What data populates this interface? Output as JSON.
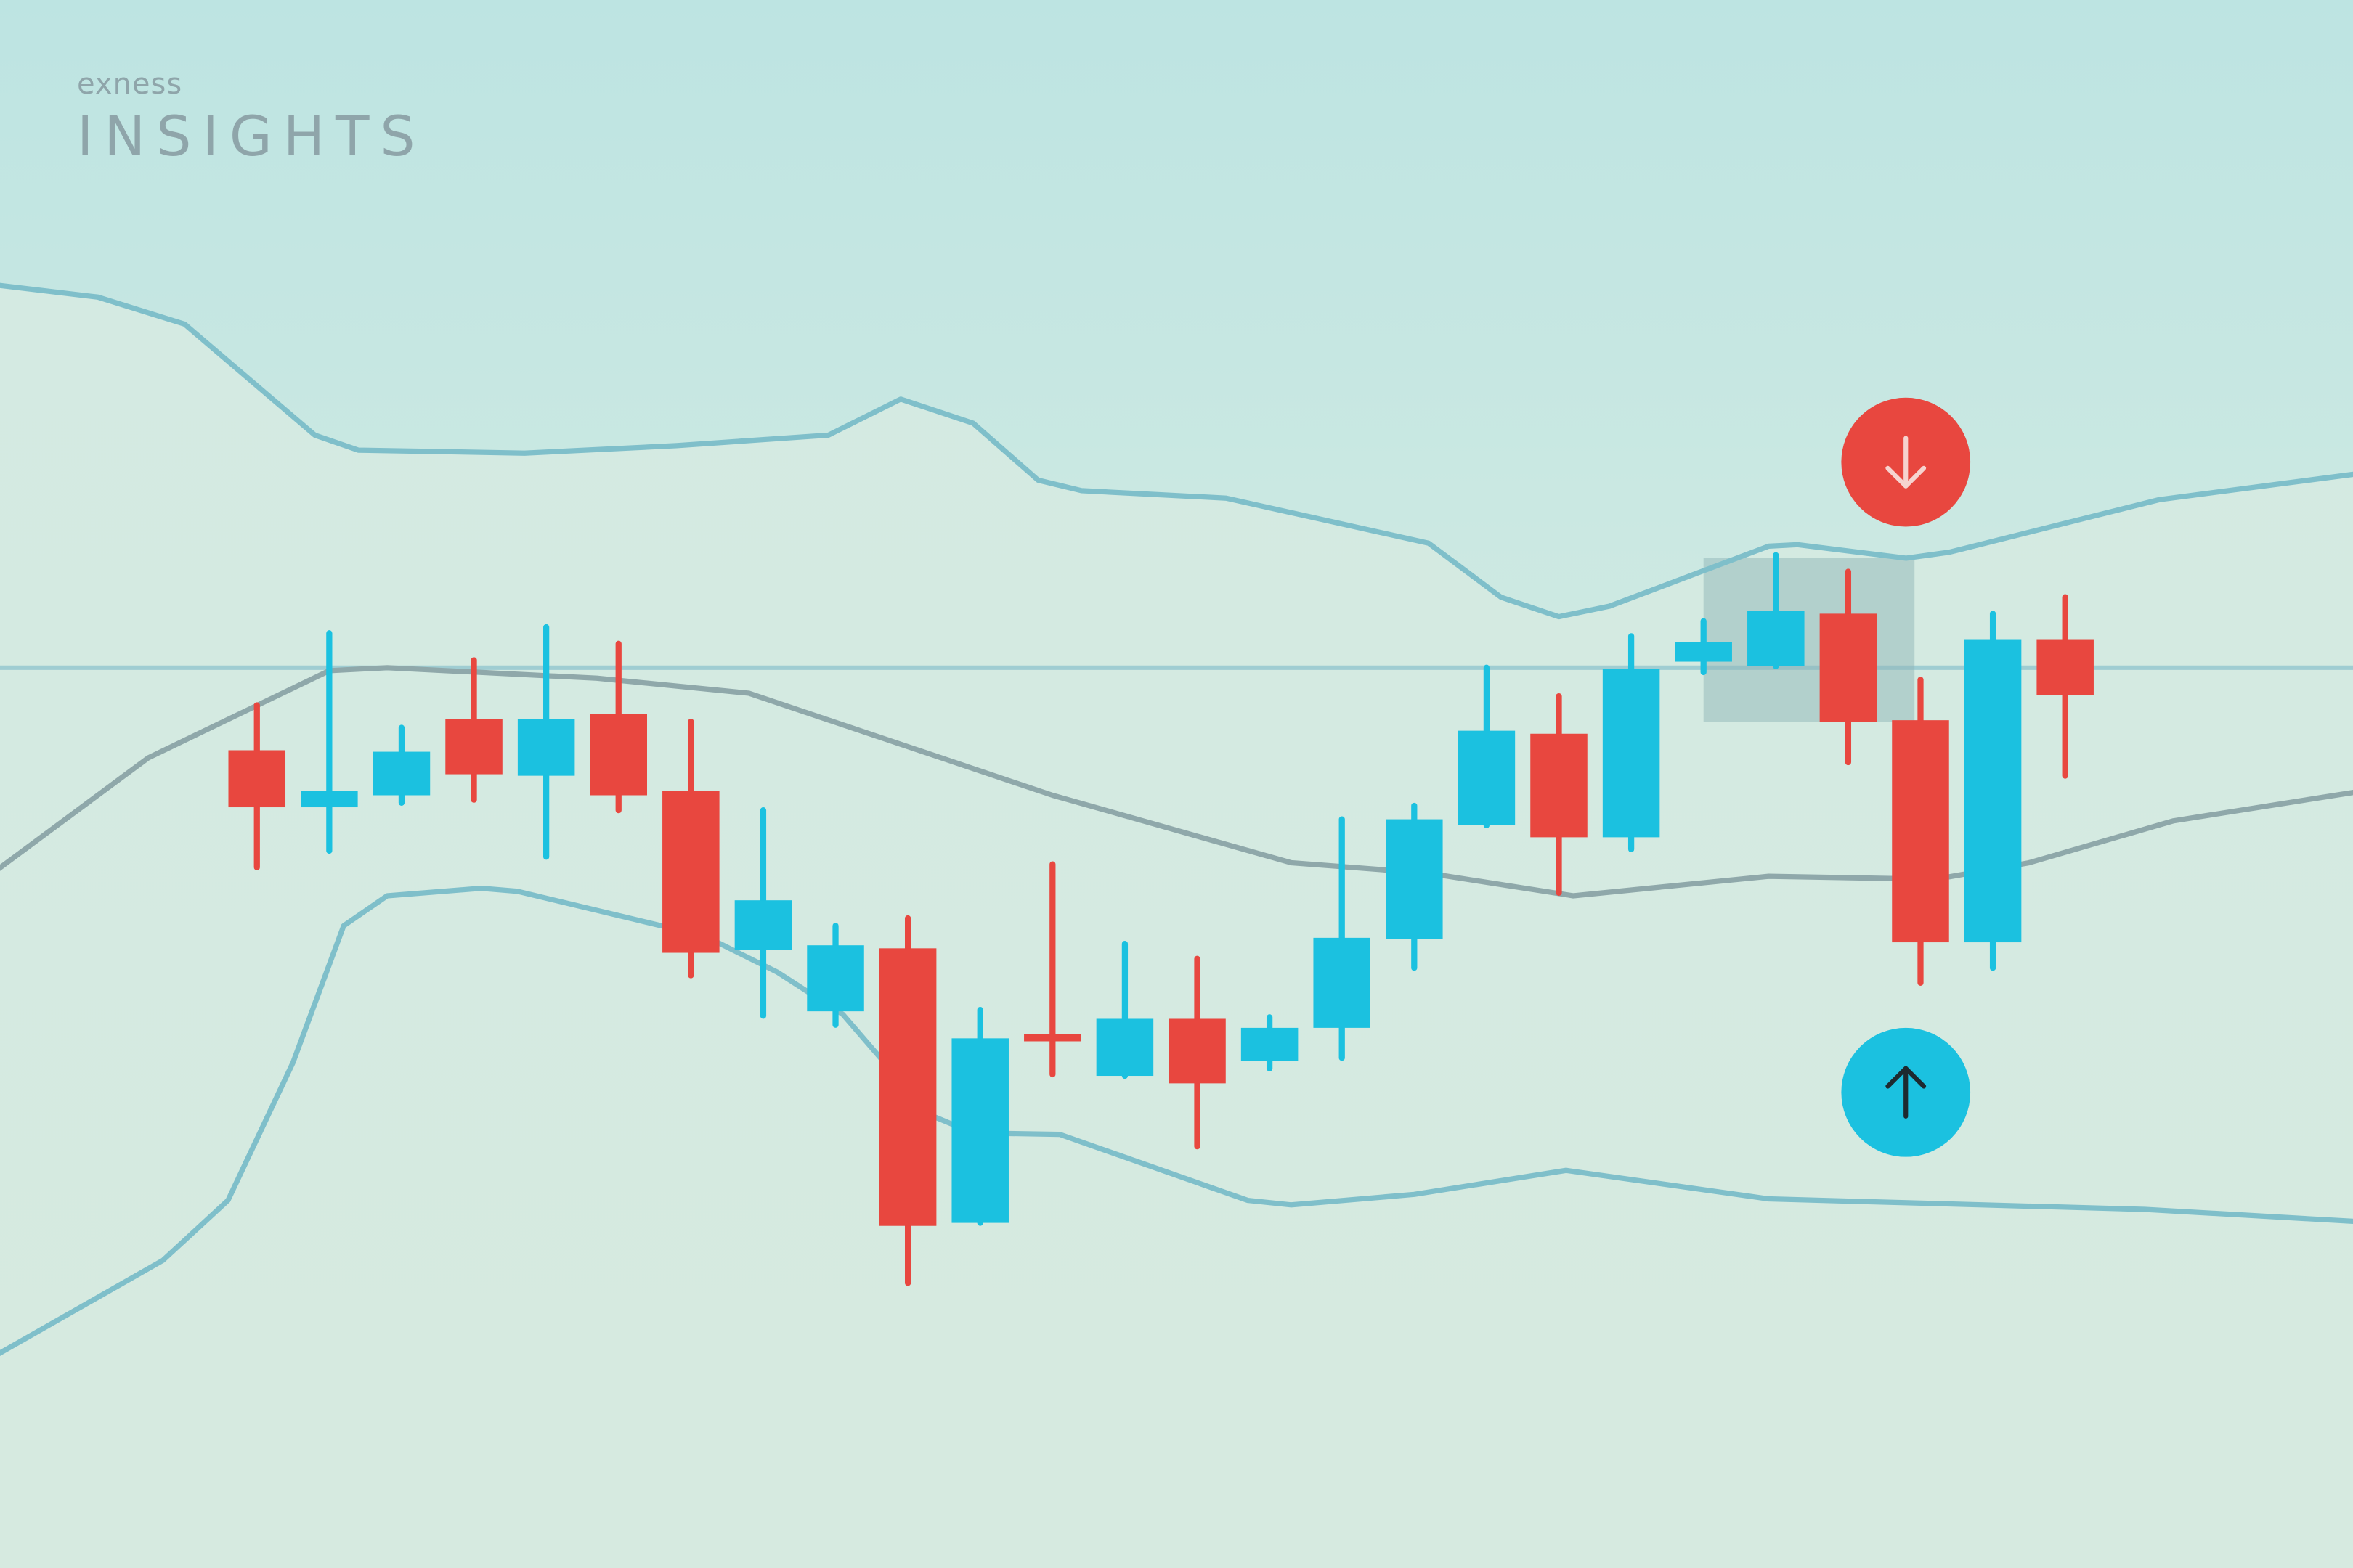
{
  "logo": {
    "brand": "exness",
    "product": "INSIGHTS"
  },
  "colors": {
    "bearish": "#e8473f",
    "bullish": "#1bc1e0",
    "band": "#7fbfca",
    "middle_band": "#8fa8aa",
    "reference_line": "#9fcdd2",
    "background": "#d5eae1",
    "band_fill": "#bfe5e1"
  },
  "signals": [
    {
      "type": "sell",
      "icon": "arrow-down-icon",
      "color": "#e8473f"
    },
    {
      "type": "buy",
      "icon": "arrow-up-icon",
      "color": "#1bc1e0"
    }
  ],
  "chart_data": {
    "type": "candlestick",
    "title": "",
    "xlabel": "",
    "ylabel": "",
    "axes_visible": false,
    "grid": false,
    "candles": [
      {
        "o": 54.5,
        "h": 57.5,
        "l": 46.7,
        "c": 50.7
      },
      {
        "o": 50.7,
        "h": 62.3,
        "l": 47.8,
        "c": 51.8
      },
      {
        "o": 51.5,
        "h": 56.0,
        "l": 51.0,
        "c": 54.4
      },
      {
        "o": 56.6,
        "h": 60.5,
        "l": 51.2,
        "c": 52.9
      },
      {
        "o": 52.8,
        "h": 62.7,
        "l": 47.4,
        "c": 56.6
      },
      {
        "o": 56.9,
        "h": 61.6,
        "l": 50.5,
        "c": 51.5
      },
      {
        "o": 51.8,
        "h": 56.4,
        "l": 39.5,
        "c": 41.0
      },
      {
        "o": 41.2,
        "h": 50.5,
        "l": 36.8,
        "c": 44.5
      },
      {
        "o": 37.1,
        "h": 42.8,
        "l": 36.2,
        "c": 41.5
      },
      {
        "o": 41.3,
        "h": 43.3,
        "l": 19.0,
        "c": 22.8
      },
      {
        "o": 23.0,
        "h": 37.2,
        "l": 23.0,
        "c": 35.3
      },
      {
        "o": 35.6,
        "h": 46.9,
        "l": 32.9,
        "c": 35.1
      },
      {
        "o": 32.8,
        "h": 41.6,
        "l": 32.8,
        "c": 36.6
      },
      {
        "o": 36.6,
        "h": 40.6,
        "l": 28.1,
        "c": 32.3
      },
      {
        "o": 33.8,
        "h": 36.7,
        "l": 33.3,
        "c": 36.0
      },
      {
        "o": 36.0,
        "h": 49.9,
        "l": 34.0,
        "c": 42.0
      },
      {
        "o": 41.9,
        "h": 50.8,
        "l": 40.0,
        "c": 49.9
      },
      {
        "o": 49.5,
        "h": 60.0,
        "l": 49.5,
        "c": 55.8
      },
      {
        "o": 55.6,
        "h": 58.1,
        "l": 45.0,
        "c": 48.7
      },
      {
        "o": 48.7,
        "h": 62.1,
        "l": 47.9,
        "c": 59.9
      },
      {
        "o": 60.4,
        "h": 63.1,
        "l": 59.7,
        "c": 61.7
      },
      {
        "o": 60.1,
        "h": 67.5,
        "l": 60.1,
        "c": 63.8
      },
      {
        "o": 63.6,
        "h": 66.4,
        "l": 53.7,
        "c": 56.4
      },
      {
        "o": 56.5,
        "h": 59.2,
        "l": 39.0,
        "c": 41.7
      },
      {
        "o": 41.7,
        "h": 63.6,
        "l": 40.0,
        "c": 61.9
      },
      {
        "o": 61.9,
        "h": 64.7,
        "l": 52.8,
        "c": 58.2
      }
    ],
    "reference_level": 60.0,
    "highlight_range": {
      "from_candle": 21,
      "to_candle": 23
    },
    "bands": {
      "upper": [
        [
          -2.6,
          85.5
        ],
        [
          -1.2,
          84.7
        ],
        [
          0.0,
          82.9
        ],
        [
          1.8,
          75.5
        ],
        [
          2.4,
          74.5
        ],
        [
          4.7,
          74.3
        ],
        [
          6.8,
          74.8
        ],
        [
          8.9,
          75.5
        ],
        [
          9.9,
          77.9
        ],
        [
          10.9,
          76.3
        ],
        [
          11.8,
          72.5
        ],
        [
          12.4,
          71.8
        ],
        [
          14.4,
          71.3
        ],
        [
          17.2,
          68.3
        ],
        [
          18.2,
          64.7
        ],
        [
          19.0,
          63.4
        ],
        [
          19.7,
          64.1
        ],
        [
          21.9,
          68.1
        ],
        [
          22.3,
          68.2
        ],
        [
          23.8,
          67.3
        ],
        [
          24.4,
          67.7
        ],
        [
          27.3,
          71.2
        ],
        [
          30.0,
          72.9
        ]
      ],
      "middle": [
        [
          -2.6,
          46.5
        ],
        [
          -0.5,
          54.0
        ],
        [
          2.0,
          59.8
        ],
        [
          2.8,
          60.0
        ],
        [
          5.7,
          59.3
        ],
        [
          7.8,
          58.3
        ],
        [
          12.0,
          51.5
        ],
        [
          15.3,
          47.0
        ],
        [
          17.2,
          46.3
        ],
        [
          19.2,
          44.8
        ],
        [
          21.9,
          46.1
        ],
        [
          24.2,
          45.9
        ],
        [
          25.5,
          47.0
        ],
        [
          27.5,
          49.8
        ],
        [
          30.0,
          51.7
        ]
      ],
      "lower": [
        [
          -2.6,
          14.2
        ],
        [
          -0.3,
          20.5
        ],
        [
          0.6,
          24.5
        ],
        [
          1.5,
          33.7
        ],
        [
          2.2,
          42.8
        ],
        [
          2.8,
          44.8
        ],
        [
          4.1,
          45.3
        ],
        [
          4.6,
          45.1
        ],
        [
          7.2,
          42.1
        ],
        [
          8.2,
          39.7
        ],
        [
          9.1,
          36.9
        ],
        [
          10.3,
          30.2
        ],
        [
          10.9,
          29.0
        ],
        [
          12.1,
          28.9
        ],
        [
          14.7,
          24.5
        ],
        [
          15.3,
          24.2
        ],
        [
          17.0,
          24.9
        ],
        [
          19.1,
          26.5
        ],
        [
          21.9,
          24.6
        ],
        [
          27.1,
          23.9
        ],
        [
          30.0,
          23.1
        ]
      ]
    }
  }
}
